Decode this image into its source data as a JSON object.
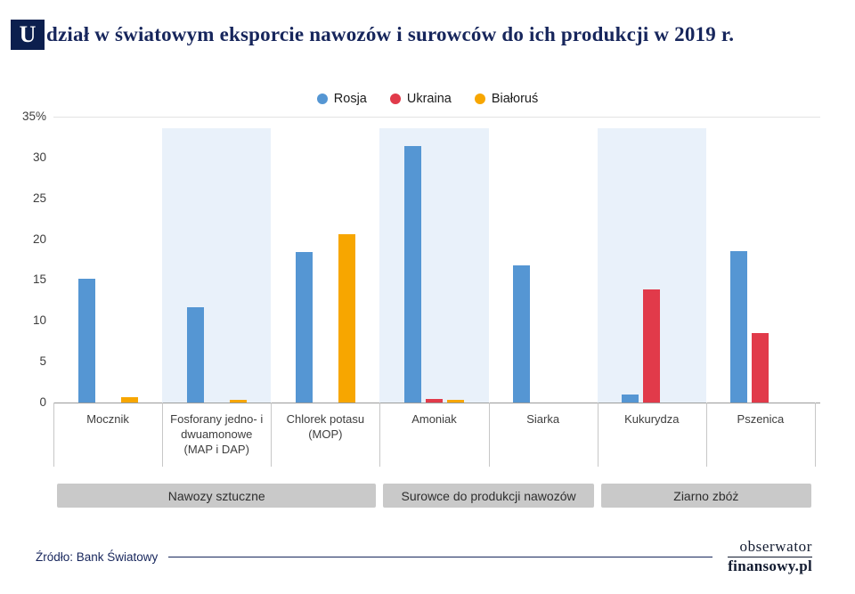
{
  "title": {
    "drop_cap": "U",
    "rest": "dział w światowym eksporcie nawozów i surowców do ich produkcji w 2019 r."
  },
  "legend": [
    {
      "label": "Rosja",
      "color": "#5596d3"
    },
    {
      "label": "Ukraina",
      "color": "#e13a4a"
    },
    {
      "label": "Białoruś",
      "color": "#f7a600"
    }
  ],
  "chart_data": {
    "type": "bar",
    "title": "Udział w światowym eksporcie nawozów i surowców do ich produkcji w 2019 r.",
    "unit": "%",
    "ylim": [
      0,
      35
    ],
    "yticks": [
      0,
      5,
      10,
      15,
      20,
      25,
      30,
      35
    ],
    "ytick_labels": [
      "0",
      "5",
      "10",
      "15",
      "20",
      "25",
      "30",
      "35%"
    ],
    "grid": false,
    "legend_position": "top",
    "categories": [
      "Mocznik",
      "Fosforany jedno- i dwuamonowe (MAP i DAP)",
      "Chlorek potasu (MOP)",
      "Amoniak",
      "Siarka",
      "Kukurydza",
      "Pszenica"
    ],
    "category_lines": [
      [
        "Mocznik"
      ],
      [
        "Fosforany jedno- i",
        "dwuamonowe",
        "(MAP i DAP)"
      ],
      [
        "Chlorek potasu",
        "(MOP)"
      ],
      [
        "Amoniak"
      ],
      [
        "Siarka"
      ],
      [
        "Kukurydza"
      ],
      [
        "Pszenica"
      ]
    ],
    "series": [
      {
        "name": "Rosja",
        "color": "#5596d3",
        "values": [
          15.2,
          11.7,
          18.4,
          31.4,
          16.8,
          1.0,
          18.5
        ]
      },
      {
        "name": "Ukraina",
        "color": "#e13a4a",
        "values": [
          0,
          0,
          0,
          0.4,
          0,
          13.8,
          8.5
        ]
      },
      {
        "name": "Białoruś",
        "color": "#f7a600",
        "values": [
          0.6,
          0.3,
          20.6,
          0.3,
          0,
          0,
          0
        ]
      }
    ],
    "shaded_categories": [
      1,
      3,
      5
    ],
    "shade_color": "#e9f1fa",
    "groups": [
      {
        "label": "Nawozy sztuczne",
        "span": [
          0,
          2
        ]
      },
      {
        "label": "Surowce do produkcji nawozów",
        "span": [
          3,
          4
        ]
      },
      {
        "label": "Ziarno zbóż",
        "span": [
          5,
          6
        ]
      }
    ]
  },
  "footer": {
    "source": "Źródło: Bank Światowy",
    "logo_line1": "obserwator",
    "logo_line2": "finansowy.pl"
  }
}
